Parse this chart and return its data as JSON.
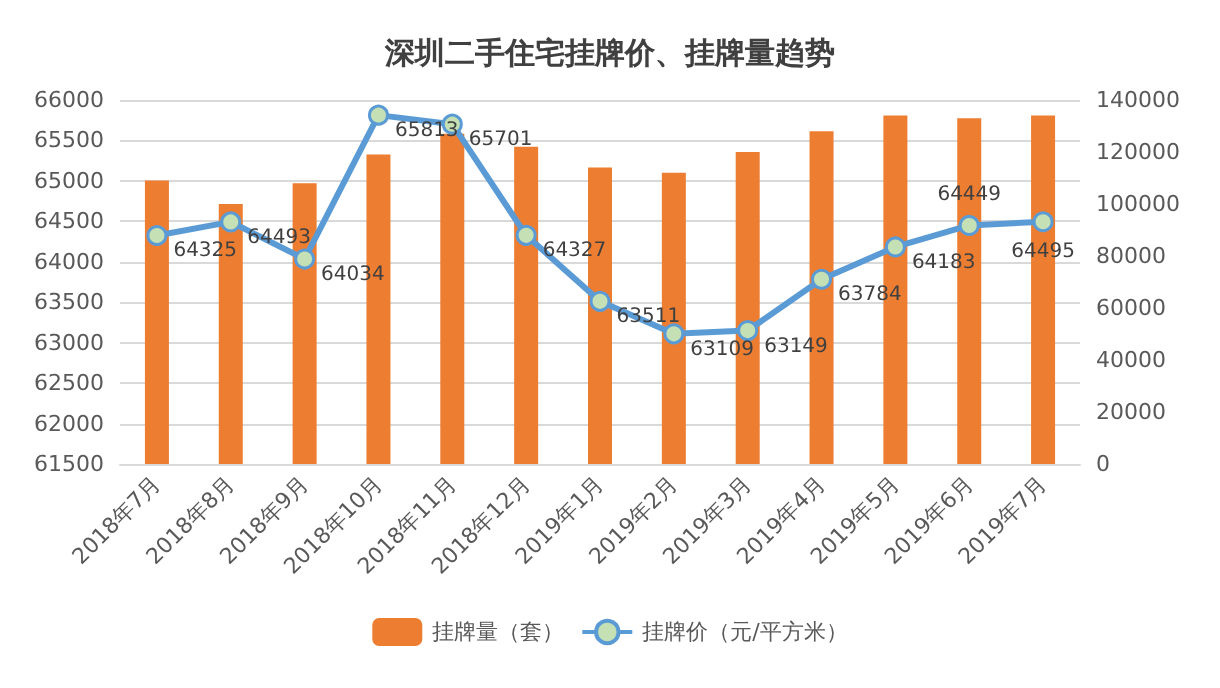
{
  "chart_data": {
    "type": "bar",
    "title": "深圳二手住宅挂牌价、挂牌量趋势",
    "categories": [
      "2018年7月",
      "2018年8月",
      "2018年9月",
      "2018年10月",
      "2018年11月",
      "2018年12月",
      "2019年1月",
      "2019年2月",
      "2019年3月",
      "2019年4月",
      "2019年5月",
      "2019年6月",
      "2019年7月"
    ],
    "series": [
      {
        "name": "挂牌量（套）",
        "axis": "y2",
        "color": "#ed7d31",
        "values": [
          109000,
          100000,
          108000,
          119000,
          127000,
          122000,
          114000,
          112000,
          120000,
          128000,
          134000,
          133000,
          134000
        ]
      },
      {
        "name": "挂牌价（元/平方米）",
        "type": "line",
        "color": "#5b9bd5",
        "marker": "circle",
        "data_labels": true,
        "values": [
          64325,
          64493,
          64034,
          65813,
          65701,
          64327,
          63511,
          63109,
          63149,
          63784,
          64183,
          64449,
          64495
        ]
      }
    ],
    "ylim": [
      61500,
      66000
    ],
    "yticks": [
      61500,
      62000,
      62500,
      63000,
      63500,
      64000,
      64500,
      65000,
      65500,
      66000
    ],
    "y2lim": [
      0,
      140000
    ],
    "y2ticks": [
      0,
      20000,
      40000,
      60000,
      80000,
      100000,
      120000,
      140000
    ],
    "grid": "y",
    "legend": "bottom"
  }
}
